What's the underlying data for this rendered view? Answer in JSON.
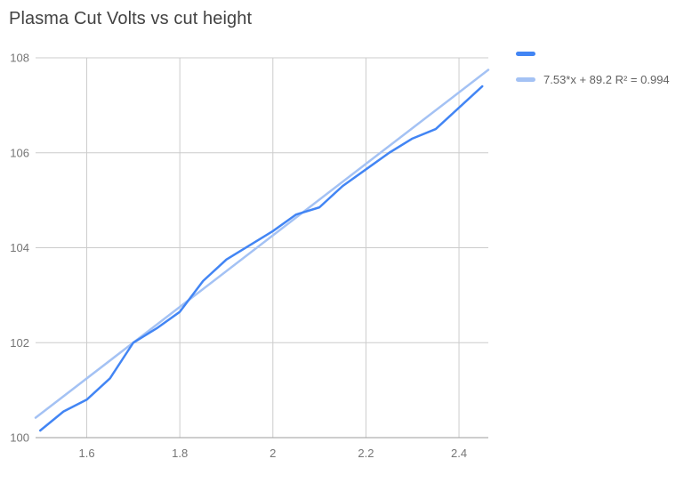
{
  "title": "Plasma Cut Volts vs cut height",
  "legend": {
    "series_label": "",
    "trendline_label": "7.53*x + 89.2 R² = 0.994"
  },
  "colors": {
    "series": "#4285f4",
    "trendline": "#a4c2f4",
    "grid": "#cccccc",
    "axis_line": "#9e9e9e",
    "axis_text": "#757575",
    "legend_text": "#616161",
    "title_text": "#424242",
    "background": "#ffffff"
  },
  "chart_data": {
    "type": "line",
    "title": "Plasma Cut Volts vs cut height",
    "xlabel": "",
    "ylabel": "",
    "xlim": [
      1.49,
      2.463
    ],
    "ylim": [
      100,
      108
    ],
    "x_ticks": [
      1.6,
      1.8,
      2,
      2.2,
      2.4
    ],
    "x_tick_labels": [
      "1.6",
      "1.8",
      "2",
      "2.2",
      "2.4"
    ],
    "y_ticks": [
      100,
      102,
      104,
      106,
      108
    ],
    "y_tick_labels": [
      "100",
      "102",
      "104",
      "106",
      "108"
    ],
    "grid": true,
    "legend_position": "top-right",
    "x": [
      1.5,
      1.55,
      1.6,
      1.65,
      1.7,
      1.75,
      1.8,
      1.85,
      1.9,
      1.95,
      2.0,
      2.05,
      2.1,
      2.15,
      2.2,
      2.25,
      2.3,
      2.35,
      2.4,
      2.45
    ],
    "series": [
      {
        "name": "",
        "values": [
          100.15,
          100.55,
          100.8,
          101.25,
          102.0,
          102.3,
          102.65,
          103.3,
          103.75,
          104.05,
          104.35,
          104.7,
          104.85,
          105.3,
          105.65,
          106.0,
          106.3,
          106.5,
          106.95,
          107.4
        ]
      }
    ],
    "trendline": {
      "slope": 7.53,
      "intercept": 89.2,
      "r_squared": 0.994,
      "label": "7.53*x + 89.2 R² = 0.994"
    }
  }
}
